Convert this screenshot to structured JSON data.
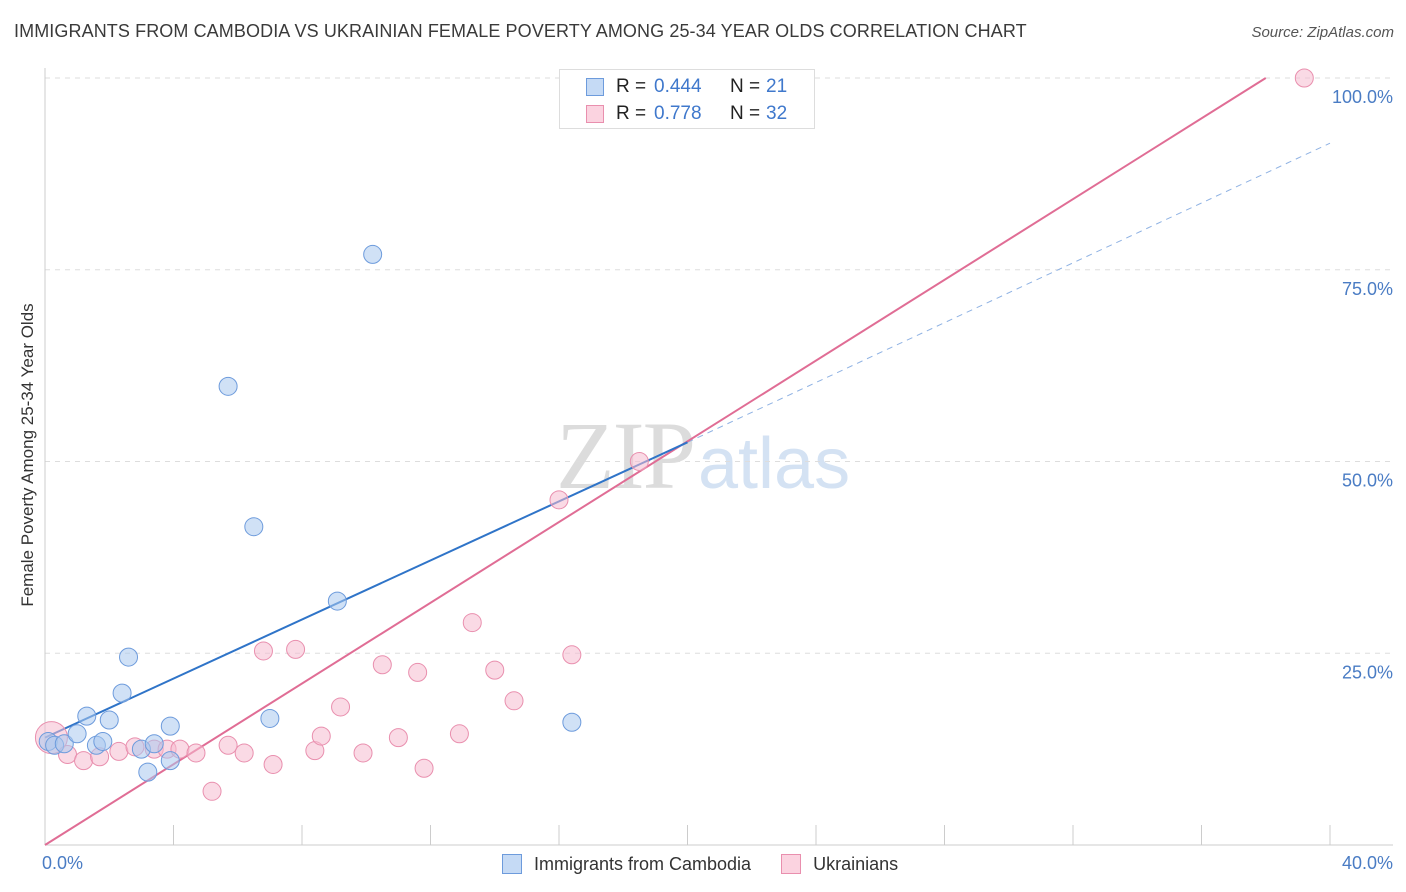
{
  "title": "IMMIGRANTS FROM CAMBODIA VS UKRAINIAN FEMALE POVERTY AMONG 25-34 YEAR OLDS CORRELATION CHART",
  "source": "Source: ZipAtlas.com",
  "watermark": {
    "zip": "ZIP",
    "atlas": "atlas"
  },
  "legend_top": {
    "r_label": "R =",
    "n_label": "N =",
    "rows": [
      {
        "name": "Immigrants from Cambodia",
        "r": "0.444",
        "n": "21"
      },
      {
        "name": "Ukrainians",
        "r": "0.778",
        "n": "32"
      }
    ]
  },
  "legend_bottom": [
    "Immigrants from Cambodia",
    "Ukrainians"
  ],
  "colors": {
    "blue_fill": "#a9c8ef",
    "blue_stroke": "#6d9bdc",
    "blue_line": "#2f74c8",
    "pink_fill": "#f6bcd0",
    "pink_stroke": "#e98fae",
    "pink_line": "#e06d95",
    "tick_text": "#4a7cc4",
    "grid": "#dddddd"
  },
  "chart_data": {
    "type": "scatter",
    "title": "IMMIGRANTS FROM CAMBODIA VS UKRAINIAN FEMALE POVERTY AMONG 25-34 YEAR OLDS CORRELATION CHART",
    "xlabel": "",
    "ylabel": "Female Poverty Among 25-34 Year Olds",
    "xlim": [
      0,
      40
    ],
    "ylim": [
      0,
      100
    ],
    "x_tick_labels": [
      {
        "value": 0,
        "label": "0.0%"
      },
      {
        "value": 40,
        "label": "40.0%"
      }
    ],
    "y_tick_labels": [
      {
        "value": 25,
        "label": "25.0%"
      },
      {
        "value": 50,
        "label": "50.0%"
      },
      {
        "value": 75,
        "label": "75.0%"
      },
      {
        "value": 100,
        "label": "100.0%"
      }
    ],
    "grid": true,
    "series": [
      {
        "name": "Immigrants from Cambodia",
        "color": "blue",
        "points": [
          [
            0.1,
            13.5
          ],
          [
            0.3,
            13.0
          ],
          [
            0.6,
            13.2
          ],
          [
            1.0,
            14.5
          ],
          [
            1.3,
            16.8
          ],
          [
            1.6,
            13.0
          ],
          [
            1.8,
            13.5
          ],
          [
            2.0,
            16.3
          ],
          [
            2.4,
            19.8
          ],
          [
            2.6,
            24.5
          ],
          [
            3.0,
            12.5
          ],
          [
            3.2,
            9.5
          ],
          [
            3.4,
            13.2
          ],
          [
            3.9,
            11.0
          ],
          [
            3.9,
            15.5
          ],
          [
            5.7,
            59.8
          ],
          [
            6.5,
            41.5
          ],
          [
            7.0,
            16.5
          ],
          [
            9.1,
            31.8
          ],
          [
            10.2,
            77.0
          ],
          [
            16.4,
            16.0
          ]
        ],
        "trend": {
          "x": [
            0,
            20
          ],
          "y": [
            14.0,
            52.5
          ],
          "dashed_extension": {
            "x": [
              20,
              40
            ],
            "y": [
              52.5,
              91.5
            ]
          }
        }
      },
      {
        "name": "Ukrainians",
        "color": "pink",
        "points": [
          [
            0.2,
            14.0
          ],
          [
            0.7,
            11.8
          ],
          [
            1.2,
            11.0
          ],
          [
            1.7,
            11.5
          ],
          [
            2.3,
            12.2
          ],
          [
            2.8,
            12.8
          ],
          [
            3.4,
            12.5
          ],
          [
            3.8,
            12.5
          ],
          [
            4.2,
            12.5
          ],
          [
            4.7,
            12.0
          ],
          [
            5.2,
            7.0
          ],
          [
            5.7,
            13.0
          ],
          [
            6.2,
            12.0
          ],
          [
            6.8,
            25.3
          ],
          [
            7.1,
            10.5
          ],
          [
            7.8,
            25.5
          ],
          [
            8.4,
            12.3
          ],
          [
            8.6,
            14.2
          ],
          [
            9.2,
            18.0
          ],
          [
            9.9,
            12.0
          ],
          [
            10.5,
            23.5
          ],
          [
            11.6,
            22.5
          ],
          [
            11.8,
            10.0
          ],
          [
            12.9,
            14.5
          ],
          [
            13.3,
            29.0
          ],
          [
            14.0,
            22.8
          ],
          [
            14.6,
            18.8
          ],
          [
            16.0,
            45.0
          ],
          [
            16.4,
            24.8
          ],
          [
            39.2,
            100.0
          ],
          [
            18.5,
            50.0
          ],
          [
            11.0,
            14.0
          ]
        ],
        "trend": {
          "x": [
            0,
            38
          ],
          "y": [
            0.0,
            100.0
          ]
        }
      }
    ]
  }
}
